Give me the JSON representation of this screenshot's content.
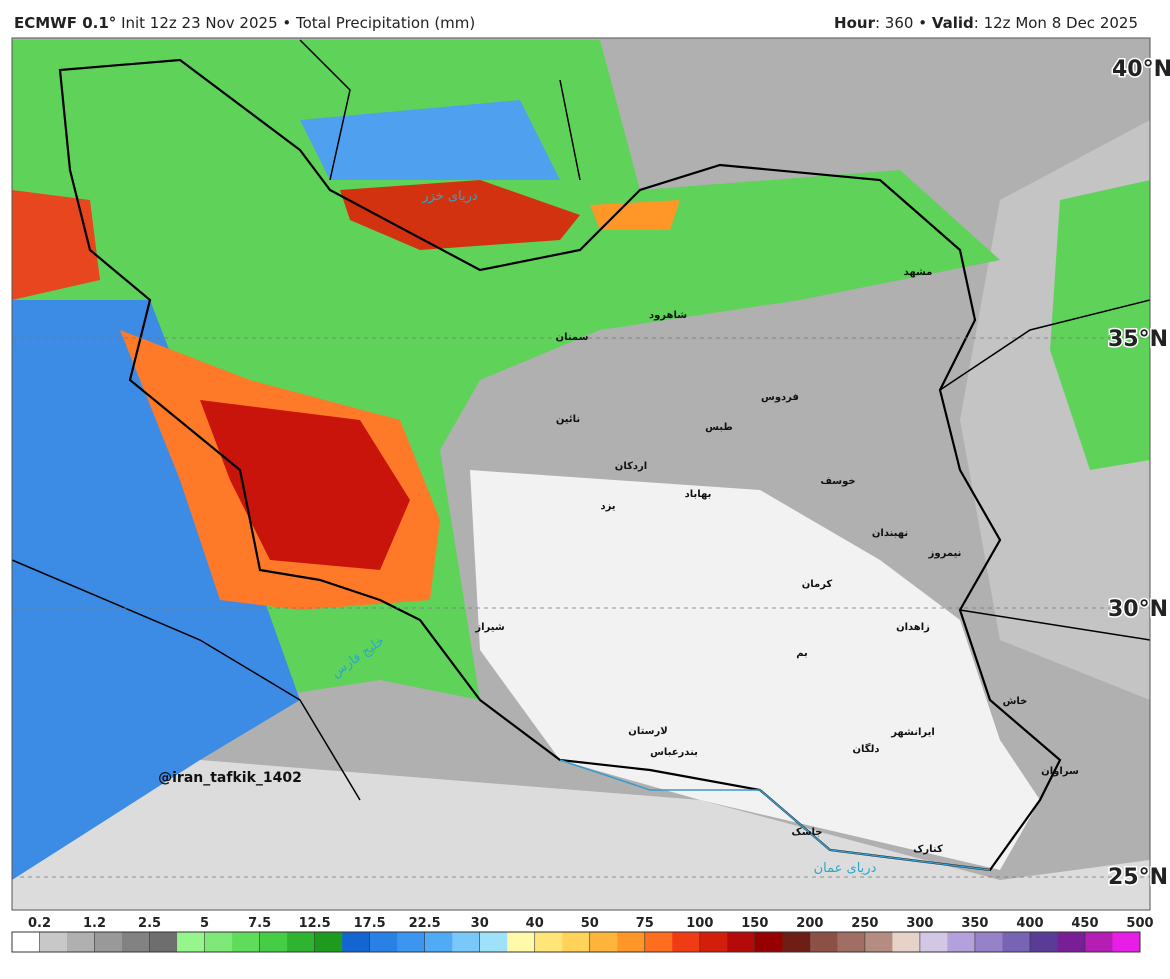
{
  "header": {
    "model": "ECMWF 0.1°",
    "init": "Init 12z 23 Nov 2025 • Total Precipitation (mm)",
    "hour_label": "Hour",
    "hour_value": ": 360 •",
    "valid_label": "Valid",
    "valid_value": ": 12z Mon 8 Dec 2025"
  },
  "map": {
    "latitudes": [
      "40°N",
      "35°N",
      "30°N",
      "25°N"
    ],
    "watermark": "@iran_tafkik_1402",
    "seas": [
      "دریای خزر",
      "خلیج فارس",
      "دریای عمان"
    ],
    "cities": [
      "مشهد",
      "سمنان",
      "شاهرود",
      "نائین",
      "طبس",
      "اردکان",
      "بهاباد",
      "یزد",
      "خوسف",
      "نهبندان",
      "کرمان",
      "زاهدان",
      "نیمروز",
      "خاش",
      "ایرانشهر",
      "سراوان",
      "دلگان",
      "جاسک",
      "کنارک",
      "بندرعباس",
      "شیراز",
      "لارستان",
      "بم",
      "فردوس"
    ]
  },
  "legend": {
    "ticks": [
      0.2,
      1.2,
      2.5,
      5,
      7.5,
      12.5,
      17.5,
      22.5,
      30,
      40,
      50,
      75,
      100,
      150,
      200,
      250,
      300,
      350,
      400,
      450,
      500
    ],
    "colors": [
      "#ffffff",
      "#c8c8c8",
      "#b0b0b0",
      "#999999",
      "#828282",
      "#6e6e6e",
      "#96f58c",
      "#7ee878",
      "#5fdc5a",
      "#46cd46",
      "#2fb42f",
      "#1e9b1e",
      "#1464d2",
      "#2882e6",
      "#3c96f0",
      "#50aaf5",
      "#78c8fa",
      "#a0e1fa",
      "#fffaaa",
      "#ffe678",
      "#ffd25a",
      "#ffb43c",
      "#ff9628",
      "#ff6e1e",
      "#f03c14",
      "#d21e0a",
      "#b40a0a",
      "#960000",
      "#6e1e14",
      "#8c5046",
      "#a06e64",
      "#b48c82",
      "#e6d2c8",
      "#d2c8e6",
      "#b4a0dc",
      "#9682c8",
      "#7864b4",
      "#5a3c96",
      "#781e96",
      "#b41eb4",
      "#e61ee6"
    ]
  }
}
